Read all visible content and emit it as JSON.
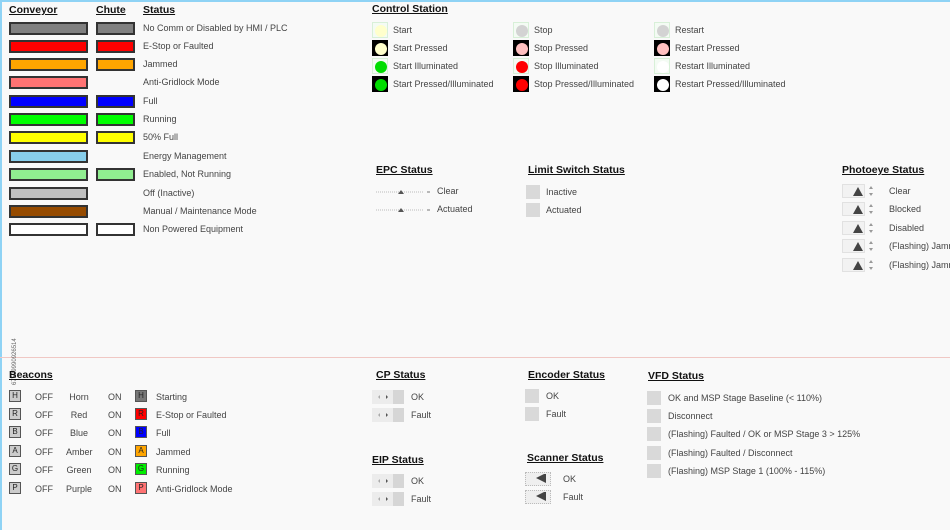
{
  "legend": {
    "headers": {
      "conveyor": "Conveyor",
      "chute": "Chute",
      "status": "Status"
    },
    "rows": [
      {
        "color": "#808080",
        "chute": true,
        "label": "No Comm or Disabled by HMI / PLC"
      },
      {
        "color": "#ff0000",
        "chute": true,
        "label": "E-Stop or Faulted"
      },
      {
        "color": "#ffa500",
        "chute": true,
        "label": "Jammed"
      },
      {
        "color": "#ff7373",
        "chute": false,
        "label": "Anti-Gridlock Mode"
      },
      {
        "color": "#0000ff",
        "chute": true,
        "label": "Full"
      },
      {
        "color": "#00ff00",
        "chute": true,
        "label": "Running"
      },
      {
        "color": "#ffff00",
        "chute": true,
        "label": "50% Full"
      },
      {
        "color": "#87ceeb",
        "chute": false,
        "label": "Energy Management"
      },
      {
        "color": "#90ee90",
        "chute": true,
        "label": "Enabled, Not Running"
      },
      {
        "color": "#c0c0c0",
        "chute": false,
        "label": "Off (Inactive)"
      },
      {
        "color": "#964b00",
        "chute": false,
        "label": "Manual / Maintenance Mode"
      },
      {
        "color": "#ffffff",
        "chute": true,
        "label": "Non Powered Equipment"
      }
    ]
  },
  "control_station": {
    "title": "Control Station",
    "columns": [
      [
        {
          "label": "Start",
          "color": "#ffffcc",
          "pressed": false
        },
        {
          "label": "Start Pressed",
          "color": "#ffffcc",
          "pressed": true
        },
        {
          "label": "Start Illuminated",
          "color": "#00dd00",
          "pressed": false
        },
        {
          "label": "Start Pressed/Illuminated",
          "color": "#00dd00",
          "pressed": true
        }
      ],
      [
        {
          "label": "Stop",
          "color": "#d3d3d3",
          "pressed": false
        },
        {
          "label": "Stop Pressed",
          "color": "#ffc0c0",
          "pressed": true
        },
        {
          "label": "Stop Illuminated",
          "color": "#ff0000",
          "pressed": false
        },
        {
          "label": "Stop Pressed/Illuminated",
          "color": "#ff0000",
          "pressed": true
        }
      ],
      [
        {
          "label": "Restart",
          "color": "#d3d3d3",
          "pressed": false
        },
        {
          "label": "Restart Pressed",
          "color": "#ffc0c0",
          "pressed": true
        },
        {
          "label": "Restart Illuminated",
          "color": "#ffffff",
          "pressed": false
        },
        {
          "label": "Restart Pressed/Illuminated",
          "color": "#ffffff",
          "pressed": true
        }
      ]
    ]
  },
  "epc": {
    "title": "EPC Status",
    "items": [
      "Clear",
      "Actuated"
    ]
  },
  "limit_switch": {
    "title": "Limit Switch Status",
    "items": [
      "Inactive",
      "Actuated"
    ]
  },
  "photoeye": {
    "title": "Photoeye Status",
    "items": [
      "Clear",
      "Blocked",
      "Disabled",
      "(Flashing) Jamm",
      "(Flashing) Jamm"
    ]
  },
  "rotated_id": "67599990926514",
  "beacons": {
    "title": "Beacons",
    "rows": [
      {
        "letter": "H",
        "off": "OFF",
        "name": "Horn",
        "on": "ON",
        "color": "#777777",
        "status": "Starting"
      },
      {
        "letter": "R",
        "off": "OFF",
        "name": "Red",
        "on": "ON",
        "color": "#ff0000",
        "status": "E-Stop or Faulted"
      },
      {
        "letter": "B",
        "off": "OFF",
        "name": "Blue",
        "on": "ON",
        "color": "#0000ff",
        "status": "Full"
      },
      {
        "letter": "A",
        "off": "OFF",
        "name": "Amber",
        "on": "ON",
        "color": "#ffa500",
        "status": "Jammed"
      },
      {
        "letter": "G",
        "off": "OFF",
        "name": "Green",
        "on": "ON",
        "color": "#00ee00",
        "status": "Running"
      },
      {
        "letter": "P",
        "off": "OFF",
        "name": "Purple",
        "on": "ON",
        "color": "#ff7373",
        "status": "Anti-Gridlock Mode"
      }
    ]
  },
  "cp": {
    "title": "CP Status",
    "items": [
      "OK",
      "Fault"
    ]
  },
  "eip": {
    "title": "EIP Status",
    "items": [
      "OK",
      "Fault"
    ]
  },
  "encoder": {
    "title": "Encoder Status",
    "items": [
      "OK",
      "Fault"
    ]
  },
  "scanner": {
    "title": "Scanner Status",
    "items": [
      "OK",
      "Fault"
    ]
  },
  "vfd": {
    "title": "VFD Status",
    "items": [
      "OK and MSP Stage Baseline (< 110%)",
      "Disconnect",
      "(Flashing) Faulted / OK or MSP Stage 3 > 125%",
      "(Flashing) Faulted / Disconnect",
      "(Flashing) MSP Stage 1 (100% - 115%)"
    ]
  }
}
